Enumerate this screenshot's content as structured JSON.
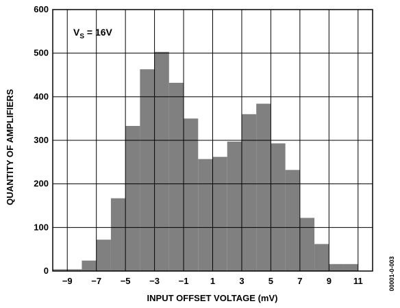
{
  "chart_data": {
    "type": "bar",
    "title": "",
    "xlabel": "INPUT OFFSET VOLTAGE (mV)",
    "ylabel": "QUANTITY OF AMPLIFIERS",
    "xlim": [
      -10,
      12
    ],
    "ylim": [
      0,
      600
    ],
    "bin_width": 1,
    "x_ticks": [
      -9,
      -7,
      -5,
      -3,
      -1,
      1,
      3,
      5,
      7,
      9,
      11
    ],
    "x_tick_labels": [
      "−9",
      "−7",
      "−5",
      "−3",
      "−1",
      "1",
      "3",
      "5",
      "7",
      "9",
      "11"
    ],
    "y_ticks": [
      0,
      100,
      200,
      300,
      400,
      500,
      600
    ],
    "y_tick_labels": [
      "0",
      "100",
      "200",
      "300",
      "400",
      "500",
      "600"
    ],
    "grid": true,
    "bar_color": "#808080",
    "annotation": {
      "main": "V",
      "subscript": "S",
      "rest": " = 16V"
    },
    "figure_code": "00001-0-003",
    "bins": [
      {
        "x": -9.5,
        "count": 4
      },
      {
        "x": -8.5,
        "count": 4
      },
      {
        "x": -7.5,
        "count": 24
      },
      {
        "x": -6.5,
        "count": 72
      },
      {
        "x": -5.5,
        "count": 167
      },
      {
        "x": -4.5,
        "count": 333
      },
      {
        "x": -3.5,
        "count": 463
      },
      {
        "x": -2.5,
        "count": 503
      },
      {
        "x": -1.5,
        "count": 432
      },
      {
        "x": -0.5,
        "count": 350
      },
      {
        "x": 0.5,
        "count": 257
      },
      {
        "x": 1.5,
        "count": 262
      },
      {
        "x": 2.5,
        "count": 297
      },
      {
        "x": 3.5,
        "count": 360
      },
      {
        "x": 4.5,
        "count": 384
      },
      {
        "x": 5.5,
        "count": 293
      },
      {
        "x": 6.5,
        "count": 232
      },
      {
        "x": 7.5,
        "count": 122
      },
      {
        "x": 8.5,
        "count": 62
      },
      {
        "x": 9.5,
        "count": 16
      },
      {
        "x": 10.5,
        "count": 16
      }
    ]
  }
}
